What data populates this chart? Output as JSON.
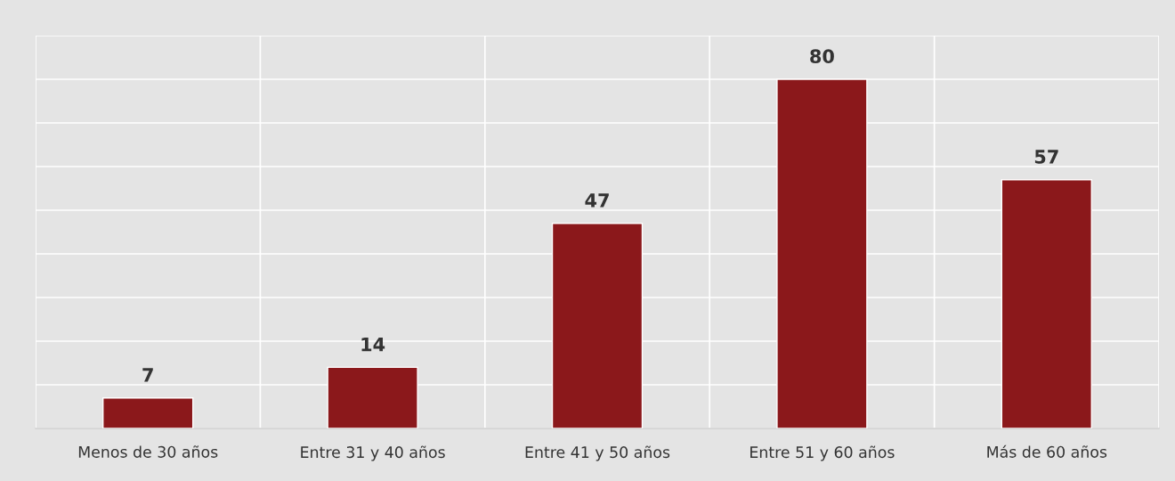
{
  "chart_data": {
    "type": "bar",
    "categories": [
      "Menos de 30 años",
      "Entre 31 y 40 años",
      "Entre 41 y 50 años",
      "Entre 51 y 60 años",
      "Más de 60 años"
    ],
    "values": [
      7,
      14,
      47,
      80,
      57
    ],
    "color": "#8b181b",
    "ylim": [
      0,
      90
    ],
    "yticks": [
      {
        "value": 0,
        "label": null
      },
      {
        "value": 10,
        "label": null
      },
      {
        "value": 20,
        "label": null
      },
      {
        "value": 30,
        "label": null
      },
      {
        "value": 40,
        "label": null
      },
      {
        "value": 50,
        "label": null
      },
      {
        "value": 60,
        "label": null
      },
      {
        "value": 70,
        "label": null
      },
      {
        "value": 80,
        "label": null
      },
      {
        "value": 90,
        "label": null
      }
    ],
    "grid": true,
    "tick_labels": "x",
    "data_labels": true
  }
}
